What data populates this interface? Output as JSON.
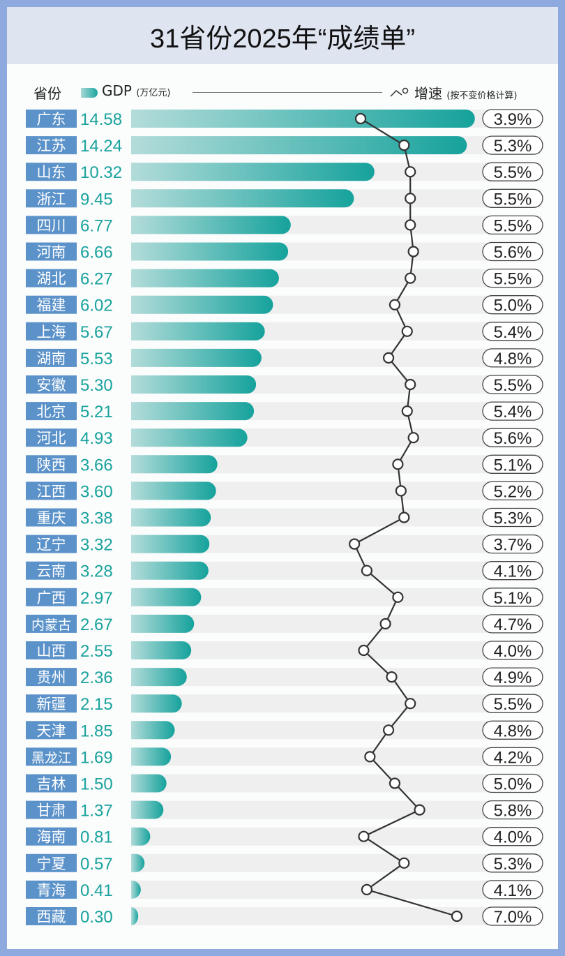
{
  "title": "31省份2025年“成绩单”",
  "colors": {
    "border": "#8ea9dd",
    "label_bg": "#5b92c9",
    "value_text": "#19a29d",
    "bar_start": "#b3dcda",
    "bar_end": "#16a29c",
    "row_bg": "#efefef",
    "line": "#333333"
  },
  "legend": {
    "province": "省份",
    "gdp": "GDP",
    "gdp_unit": "(万亿元)",
    "growth": "增速",
    "growth_note": "(按不变价格计算)"
  },
  "chart_data": {
    "type": "bar",
    "orientation": "horizontal",
    "title": "31省份2025年“成绩单”",
    "categories": [
      "广东",
      "江苏",
      "山东",
      "浙江",
      "四川",
      "河南",
      "湖北",
      "福建",
      "上海",
      "湖南",
      "安徽",
      "北京",
      "河北",
      "陕西",
      "江西",
      "重庆",
      "辽宁",
      "云南",
      "广西",
      "内蒙古",
      "山西",
      "贵州",
      "新疆",
      "天津",
      "黑龙江",
      "吉林",
      "甘肃",
      "海南",
      "宁夏",
      "青海",
      "西藏"
    ],
    "series": [
      {
        "name": "GDP",
        "unit": "万亿元",
        "type": "bar",
        "values": [
          14.58,
          14.24,
          10.32,
          9.45,
          6.77,
          6.66,
          6.27,
          6.02,
          5.67,
          5.53,
          5.3,
          5.21,
          4.93,
          3.66,
          3.6,
          3.38,
          3.32,
          3.28,
          2.97,
          2.67,
          2.55,
          2.36,
          2.15,
          1.85,
          1.69,
          1.5,
          1.37,
          0.81,
          0.57,
          0.41,
          0.3
        ],
        "labels": [
          "14.58",
          "14.24",
          "10.32",
          "9.45",
          "6.77",
          "6.66",
          "6.27",
          "6.02",
          "5.67",
          "5.53",
          "5.30",
          "5.21",
          "4.93",
          "3.66",
          "3.60",
          "3.38",
          "3.32",
          "3.28",
          "2.97",
          "2.67",
          "2.55",
          "2.36",
          "2.15",
          "1.85",
          "1.69",
          "1.50",
          "1.37",
          "0.81",
          "0.57",
          "0.41",
          "0.30"
        ]
      },
      {
        "name": "增速",
        "unit": "%",
        "type": "line",
        "values": [
          3.9,
          5.3,
          5.5,
          5.5,
          5.5,
          5.6,
          5.5,
          5.0,
          5.4,
          4.8,
          5.5,
          5.4,
          5.6,
          5.1,
          5.2,
          5.3,
          3.7,
          4.1,
          5.1,
          4.7,
          4.0,
          4.9,
          5.5,
          4.8,
          4.2,
          5.0,
          5.8,
          4.0,
          5.3,
          4.1,
          7.0
        ],
        "labels": [
          "3.9%",
          "5.3%",
          "5.5%",
          "5.5%",
          "5.5%",
          "5.6%",
          "5.5%",
          "5.0%",
          "5.4%",
          "4.8%",
          "5.5%",
          "5.4%",
          "5.6%",
          "5.1%",
          "5.2%",
          "5.3%",
          "3.7%",
          "4.1%",
          "5.1%",
          "4.7%",
          "4.0%",
          "4.9%",
          "5.5%",
          "4.8%",
          "4.2%",
          "5.0%",
          "5.8%",
          "4.0%",
          "5.3%",
          "4.1%",
          "7.0%"
        ]
      }
    ],
    "grid": false,
    "legend_position": "top"
  }
}
